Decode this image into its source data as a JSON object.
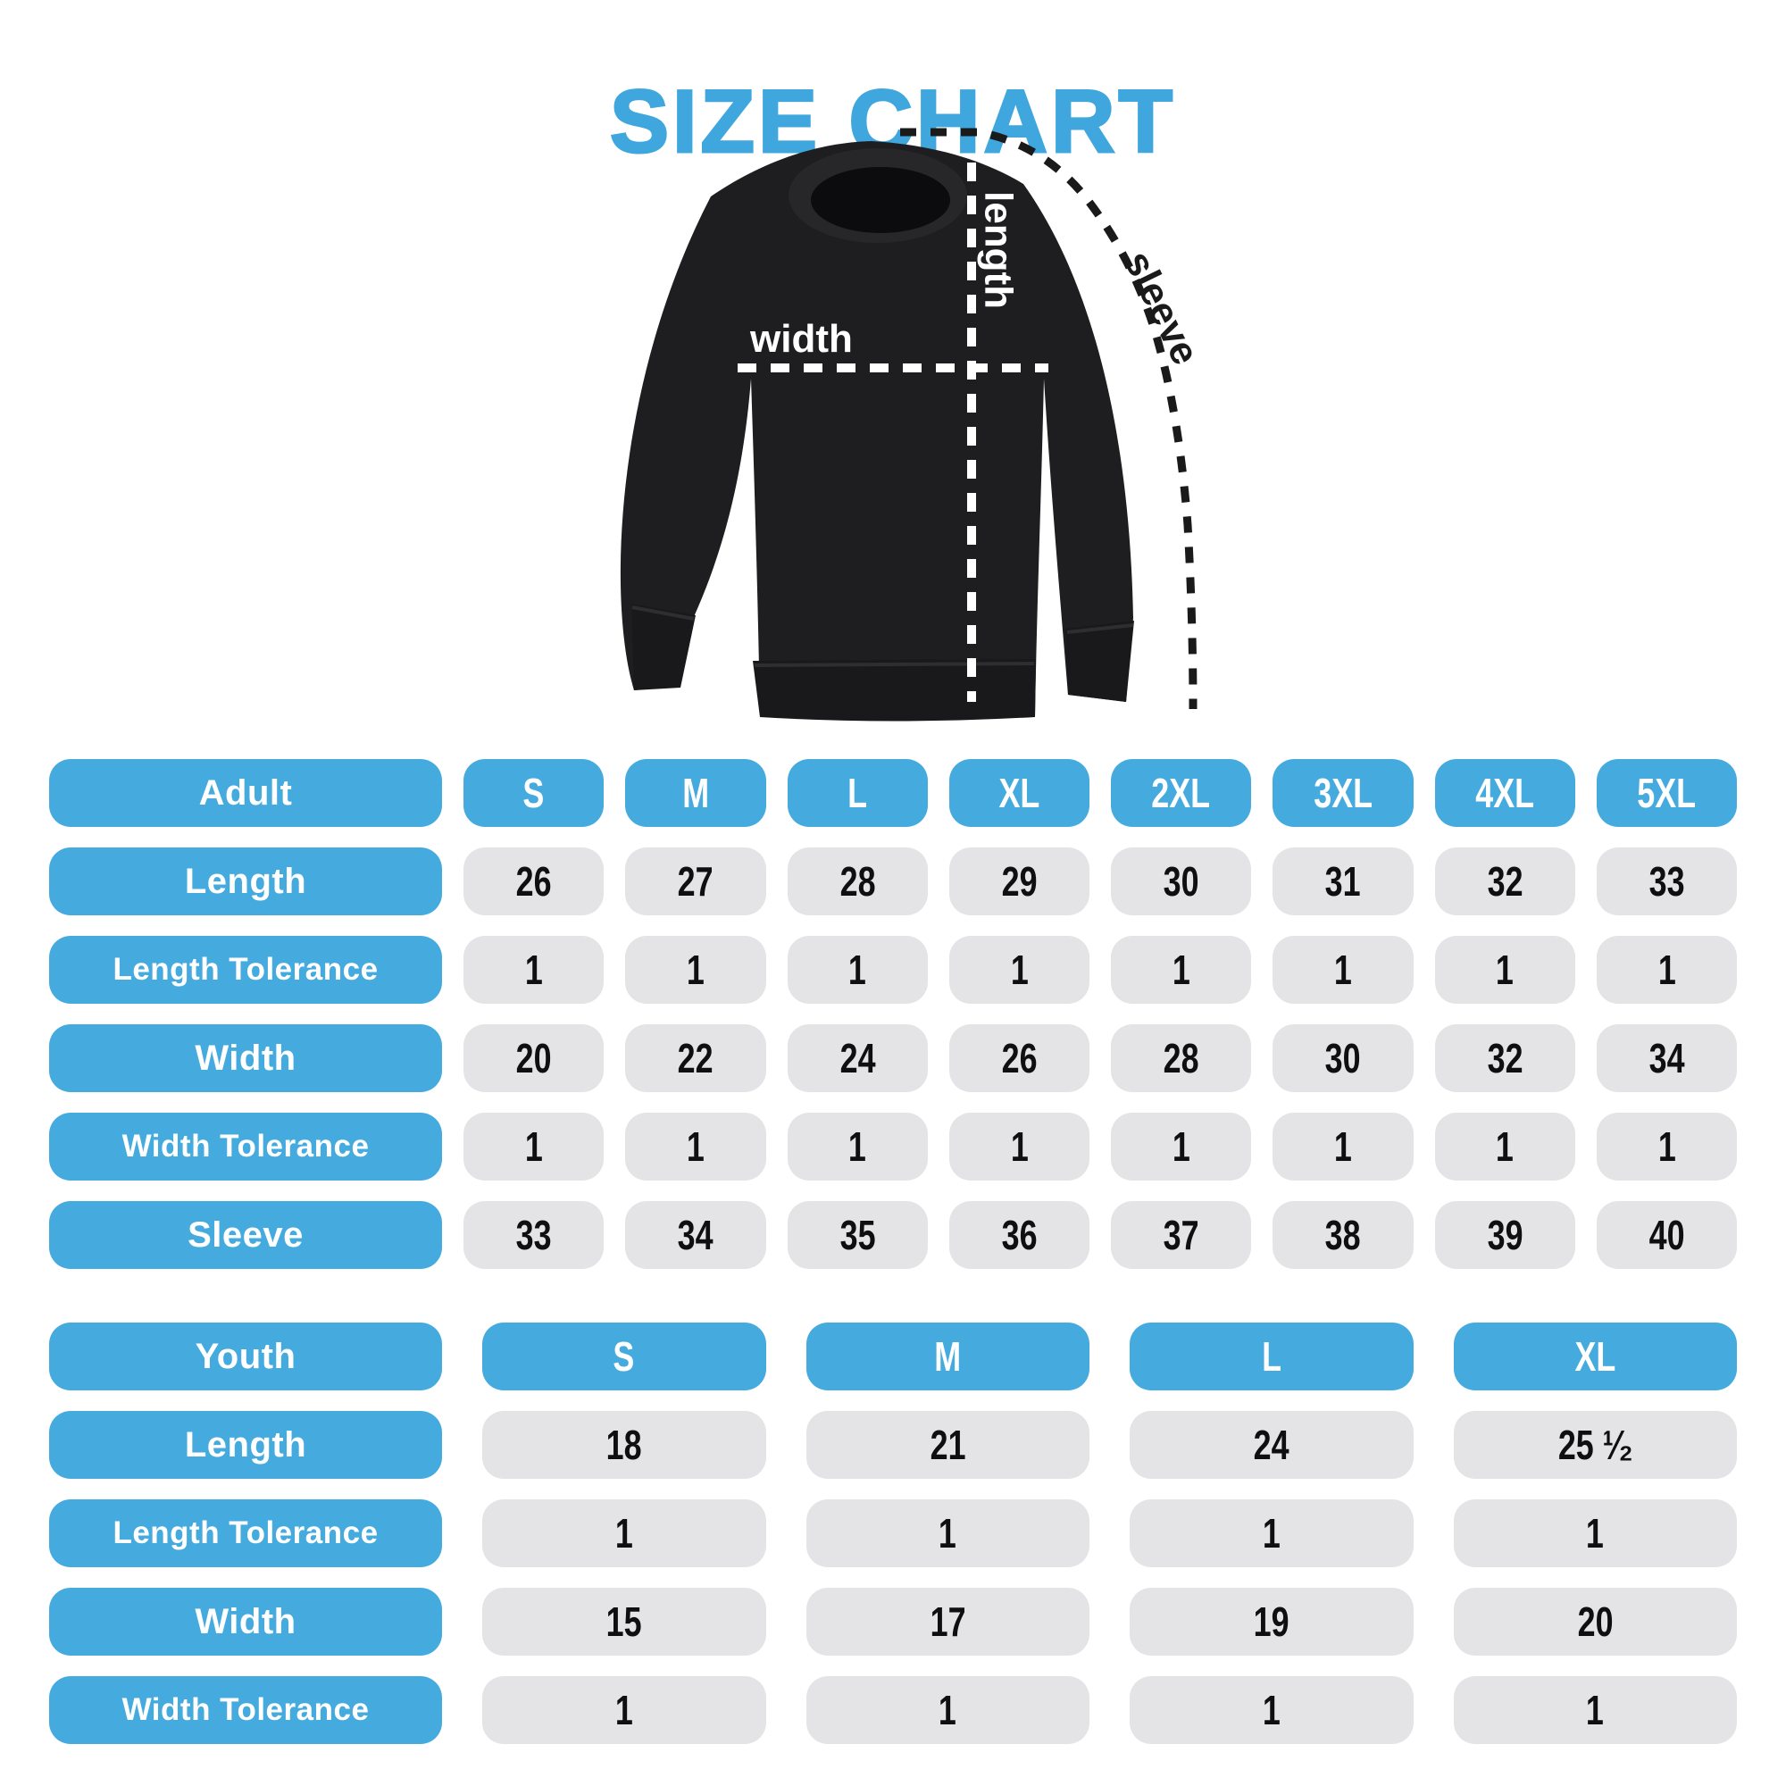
{
  "title": "SIZE CHART",
  "colors": {
    "accent_blue": "#45ABDF",
    "title_blue": "#3FA7DE",
    "cell_gray": "#E4E4E6",
    "garment_black": "#1E1E20",
    "measure_line_white": "#FFFFFF",
    "measure_line_black": "#1A1A1A"
  },
  "diagram": {
    "length_label": "length",
    "width_label": "width",
    "sleeve_label": "sleeve"
  },
  "adult_table": {
    "header": {
      "label": "Adult",
      "sizes": [
        "S",
        "M",
        "L",
        "XL",
        "2XL",
        "3XL",
        "4XL",
        "5XL"
      ]
    },
    "rows": [
      {
        "label": "Length",
        "values": [
          "26",
          "27",
          "28",
          "29",
          "30",
          "31",
          "32",
          "33"
        ]
      },
      {
        "label": "Length Tolerance",
        "values": [
          "1",
          "1",
          "1",
          "1",
          "1",
          "1",
          "1",
          "1"
        ]
      },
      {
        "label": "Width",
        "values": [
          "20",
          "22",
          "24",
          "26",
          "28",
          "30",
          "32",
          "34"
        ]
      },
      {
        "label": "Width Tolerance",
        "values": [
          "1",
          "1",
          "1",
          "1",
          "1",
          "1",
          "1",
          "1"
        ]
      },
      {
        "label": "Sleeve",
        "values": [
          "33",
          "34",
          "35",
          "36",
          "37",
          "38",
          "39",
          "40"
        ]
      }
    ]
  },
  "youth_table": {
    "header": {
      "label": "Youth",
      "sizes": [
        "S",
        "M",
        "L",
        "XL"
      ]
    },
    "rows": [
      {
        "label": "Length",
        "values": [
          "18",
          "21",
          "24",
          "25 ¹⁄₂"
        ]
      },
      {
        "label": "Length Tolerance",
        "values": [
          "1",
          "1",
          "1",
          "1"
        ]
      },
      {
        "label": "Width",
        "values": [
          "15",
          "17",
          "19",
          "20"
        ]
      },
      {
        "label": "Width Tolerance",
        "values": [
          "1",
          "1",
          "1",
          "1"
        ]
      }
    ]
  }
}
